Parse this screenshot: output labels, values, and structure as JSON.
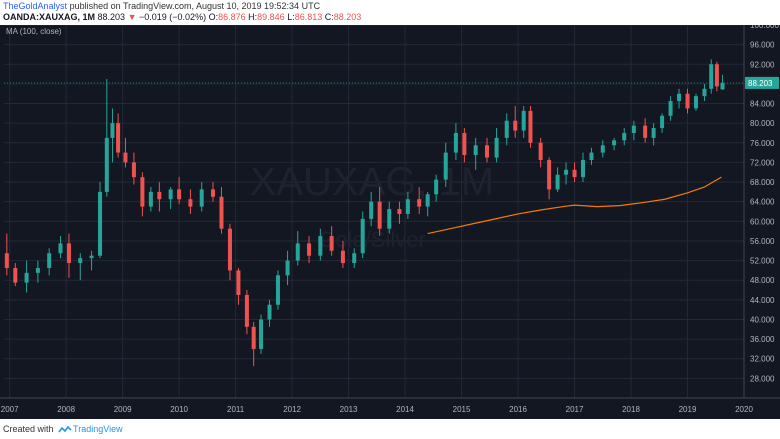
{
  "header": {
    "author": "TheGoldAnalyst",
    "published": "published on TradingView.com, August 10, 2019 19:52:34 UTC",
    "symbol": "OANDA:XAUXAG, 1M",
    "last": "88.203",
    "change_arrow": "▼",
    "change": "−0.019 (−0.02%)",
    "o_label": "O:",
    "o_value": "86.876",
    "h_label": "H:",
    "h_value": "89.846",
    "l_label": "L:",
    "l_value": "86.813",
    "c_label": "C:",
    "c_value": "88.203"
  },
  "legend": {
    "ma_label": "MA (100, close)"
  },
  "watermark": {
    "symbol": "XAUXAG, 1M",
    "description": "Gold/Silver"
  },
  "footer": {
    "created_with": "Created with",
    "brand": "TradingView"
  },
  "colors": {
    "background": "#131722",
    "up": "#26a69a",
    "down": "#ef5350",
    "ma": "#f57c00",
    "price_tag": "#26a69a",
    "grid": "#232838",
    "axis_text": "#b2b5be"
  },
  "chart_data": {
    "type": "candlestick",
    "instrument": "OANDA:XAUXAG",
    "interval": "1M",
    "ylim": [
      24,
      100
    ],
    "y_ticks": [
      "28.000",
      "32.000",
      "36.000",
      "40.000",
      "44.000",
      "48.000",
      "52.000",
      "56.000",
      "60.000",
      "64.000",
      "68.000",
      "72.000",
      "76.000",
      "80.000",
      "84.000",
      "88.000",
      "92.000",
      "96.000",
      "100.000"
    ],
    "x_ticks": [
      "2007",
      "2008",
      "2009",
      "2010",
      "2011",
      "2012",
      "2013",
      "2014",
      "2015",
      "2016",
      "2017",
      "2018",
      "2019",
      "2020"
    ],
    "x_range": [
      2006.9,
      2020.0
    ],
    "grid": true,
    "last_price": "88.203",
    "candles": [
      {
        "x": 2006.95,
        "o": 53.5,
        "h": 57.5,
        "l": 49.0,
        "c": 50.5
      },
      {
        "x": 2007.1,
        "o": 50.5,
        "h": 51.5,
        "l": 46.8,
        "c": 47.5
      },
      {
        "x": 2007.3,
        "o": 47.5,
        "h": 52.0,
        "l": 45.5,
        "c": 49.5
      },
      {
        "x": 2007.5,
        "o": 49.5,
        "h": 52.0,
        "l": 47.5,
        "c": 50.5
      },
      {
        "x": 2007.7,
        "o": 50.5,
        "h": 54.5,
        "l": 49.0,
        "c": 53.5
      },
      {
        "x": 2007.9,
        "o": 53.5,
        "h": 57.0,
        "l": 52.5,
        "c": 55.5
      },
      {
        "x": 2008.05,
        "o": 55.5,
        "h": 57.5,
        "l": 48.5,
        "c": 51.5
      },
      {
        "x": 2008.25,
        "o": 51.5,
        "h": 53.5,
        "l": 48.0,
        "c": 52.5
      },
      {
        "x": 2008.45,
        "o": 52.5,
        "h": 54.0,
        "l": 50.0,
        "c": 53.0
      },
      {
        "x": 2008.6,
        "o": 53.0,
        "h": 68.0,
        "l": 52.5,
        "c": 66.0
      },
      {
        "x": 2008.72,
        "o": 66.0,
        "h": 89.0,
        "l": 65.0,
        "c": 77.0
      },
      {
        "x": 2008.82,
        "o": 77.0,
        "h": 83.0,
        "l": 72.0,
        "c": 80.0
      },
      {
        "x": 2008.92,
        "o": 80.0,
        "h": 82.0,
        "l": 73.0,
        "c": 74.0
      },
      {
        "x": 2009.05,
        "o": 74.0,
        "h": 77.0,
        "l": 71.0,
        "c": 72.0
      },
      {
        "x": 2009.2,
        "o": 72.0,
        "h": 74.0,
        "l": 67.5,
        "c": 69.0
      },
      {
        "x": 2009.35,
        "o": 69.0,
        "h": 70.0,
        "l": 61.0,
        "c": 63.0
      },
      {
        "x": 2009.5,
        "o": 63.0,
        "h": 67.0,
        "l": 62.0,
        "c": 66.0
      },
      {
        "x": 2009.65,
        "o": 66.0,
        "h": 68.0,
        "l": 62.0,
        "c": 64.5
      },
      {
        "x": 2009.85,
        "o": 64.5,
        "h": 67.0,
        "l": 62.5,
        "c": 66.5
      },
      {
        "x": 2010.0,
        "o": 66.5,
        "h": 69.0,
        "l": 63.5,
        "c": 64.5
      },
      {
        "x": 2010.2,
        "o": 64.5,
        "h": 66.5,
        "l": 61.5,
        "c": 63.0
      },
      {
        "x": 2010.4,
        "o": 63.0,
        "h": 68.0,
        "l": 62.0,
        "c": 66.5
      },
      {
        "x": 2010.6,
        "o": 66.5,
        "h": 68.0,
        "l": 64.0,
        "c": 65.0
      },
      {
        "x": 2010.75,
        "o": 65.0,
        "h": 67.0,
        "l": 57.5,
        "c": 58.5
      },
      {
        "x": 2010.9,
        "o": 58.5,
        "h": 59.5,
        "l": 48.0,
        "c": 50.0
      },
      {
        "x": 2011.05,
        "o": 50.0,
        "h": 50.5,
        "l": 43.0,
        "c": 45.0
      },
      {
        "x": 2011.2,
        "o": 45.0,
        "h": 46.0,
        "l": 37.0,
        "c": 38.5
      },
      {
        "x": 2011.32,
        "o": 38.5,
        "h": 39.5,
        "l": 30.5,
        "c": 34.0
      },
      {
        "x": 2011.45,
        "o": 34.0,
        "h": 41.0,
        "l": 33.0,
        "c": 40.0
      },
      {
        "x": 2011.6,
        "o": 40.0,
        "h": 44.0,
        "l": 38.5,
        "c": 43.0
      },
      {
        "x": 2011.75,
        "o": 43.0,
        "h": 50.0,
        "l": 42.0,
        "c": 49.0
      },
      {
        "x": 2011.92,
        "o": 49.0,
        "h": 54.0,
        "l": 47.0,
        "c": 52.0
      },
      {
        "x": 2012.1,
        "o": 52.0,
        "h": 58.0,
        "l": 51.0,
        "c": 55.5
      },
      {
        "x": 2012.3,
        "o": 55.5,
        "h": 57.0,
        "l": 51.5,
        "c": 53.0
      },
      {
        "x": 2012.5,
        "o": 53.0,
        "h": 58.5,
        "l": 52.0,
        "c": 57.0
      },
      {
        "x": 2012.7,
        "o": 57.0,
        "h": 59.0,
        "l": 53.0,
        "c": 54.0
      },
      {
        "x": 2012.9,
        "o": 54.0,
        "h": 56.0,
        "l": 50.5,
        "c": 51.5
      },
      {
        "x": 2013.1,
        "o": 51.5,
        "h": 54.5,
        "l": 50.5,
        "c": 53.5
      },
      {
        "x": 2013.25,
        "o": 53.5,
        "h": 62.0,
        "l": 52.5,
        "c": 60.5
      },
      {
        "x": 2013.4,
        "o": 60.5,
        "h": 66.0,
        "l": 59.0,
        "c": 64.0
      },
      {
        "x": 2013.55,
        "o": 64.0,
        "h": 67.0,
        "l": 57.0,
        "c": 58.5
      },
      {
        "x": 2013.72,
        "o": 58.5,
        "h": 64.0,
        "l": 57.5,
        "c": 62.5
      },
      {
        "x": 2013.9,
        "o": 62.5,
        "h": 64.0,
        "l": 59.5,
        "c": 61.5
      },
      {
        "x": 2014.05,
        "o": 61.5,
        "h": 66.0,
        "l": 60.5,
        "c": 64.5
      },
      {
        "x": 2014.25,
        "o": 64.5,
        "h": 67.0,
        "l": 61.5,
        "c": 63.0
      },
      {
        "x": 2014.4,
        "o": 63.0,
        "h": 66.0,
        "l": 61.0,
        "c": 65.5
      },
      {
        "x": 2014.55,
        "o": 65.5,
        "h": 69.5,
        "l": 64.0,
        "c": 68.5
      },
      {
        "x": 2014.72,
        "o": 68.5,
        "h": 76.0,
        "l": 67.0,
        "c": 74.0
      },
      {
        "x": 2014.9,
        "o": 74.0,
        "h": 80.0,
        "l": 72.5,
        "c": 78.0
      },
      {
        "x": 2015.05,
        "o": 78.0,
        "h": 79.0,
        "l": 72.0,
        "c": 73.5
      },
      {
        "x": 2015.25,
        "o": 73.5,
        "h": 77.0,
        "l": 70.5,
        "c": 75.5
      },
      {
        "x": 2015.45,
        "o": 75.5,
        "h": 77.0,
        "l": 72.0,
        "c": 73.0
      },
      {
        "x": 2015.62,
        "o": 73.0,
        "h": 79.0,
        "l": 72.0,
        "c": 77.0
      },
      {
        "x": 2015.8,
        "o": 77.0,
        "h": 82.0,
        "l": 75.5,
        "c": 80.5
      },
      {
        "x": 2015.95,
        "o": 80.5,
        "h": 83.5,
        "l": 77.0,
        "c": 78.5
      },
      {
        "x": 2016.1,
        "o": 78.5,
        "h": 83.5,
        "l": 77.0,
        "c": 82.5
      },
      {
        "x": 2016.22,
        "o": 82.5,
        "h": 83.5,
        "l": 75.0,
        "c": 76.0
      },
      {
        "x": 2016.4,
        "o": 76.0,
        "h": 77.0,
        "l": 71.0,
        "c": 72.5
      },
      {
        "x": 2016.55,
        "o": 72.5,
        "h": 73.0,
        "l": 64.5,
        "c": 66.5
      },
      {
        "x": 2016.7,
        "o": 66.5,
        "h": 71.0,
        "l": 66.0,
        "c": 69.5
      },
      {
        "x": 2016.85,
        "o": 69.5,
        "h": 72.0,
        "l": 67.5,
        "c": 70.5
      },
      {
        "x": 2017.0,
        "o": 70.5,
        "h": 72.0,
        "l": 68.0,
        "c": 69.0
      },
      {
        "x": 2017.15,
        "o": 69.0,
        "h": 74.0,
        "l": 68.0,
        "c": 72.5
      },
      {
        "x": 2017.3,
        "o": 72.5,
        "h": 75.0,
        "l": 71.5,
        "c": 74.0
      },
      {
        "x": 2017.5,
        "o": 74.0,
        "h": 76.5,
        "l": 73.0,
        "c": 75.5
      },
      {
        "x": 2017.7,
        "o": 75.5,
        "h": 77.0,
        "l": 74.5,
        "c": 76.5
      },
      {
        "x": 2017.88,
        "o": 76.5,
        "h": 79.0,
        "l": 75.5,
        "c": 78.0
      },
      {
        "x": 2018.05,
        "o": 78.0,
        "h": 80.5,
        "l": 76.5,
        "c": 79.5
      },
      {
        "x": 2018.25,
        "o": 79.5,
        "h": 81.0,
        "l": 76.0,
        "c": 77.0
      },
      {
        "x": 2018.4,
        "o": 77.0,
        "h": 80.0,
        "l": 75.5,
        "c": 79.0
      },
      {
        "x": 2018.55,
        "o": 79.0,
        "h": 82.0,
        "l": 78.0,
        "c": 81.5
      },
      {
        "x": 2018.7,
        "o": 81.5,
        "h": 85.5,
        "l": 80.5,
        "c": 84.5
      },
      {
        "x": 2018.85,
        "o": 84.5,
        "h": 87.0,
        "l": 83.0,
        "c": 86.0
      },
      {
        "x": 2019.0,
        "o": 86.0,
        "h": 87.0,
        "l": 82.0,
        "c": 83.0
      },
      {
        "x": 2019.15,
        "o": 83.0,
        "h": 86.0,
        "l": 82.5,
        "c": 85.5
      },
      {
        "x": 2019.3,
        "o": 85.5,
        "h": 88.0,
        "l": 84.5,
        "c": 87.0
      },
      {
        "x": 2019.42,
        "o": 87.0,
        "h": 93.0,
        "l": 86.0,
        "c": 92.0
      },
      {
        "x": 2019.52,
        "o": 92.0,
        "h": 92.5,
        "l": 86.5,
        "c": 87.5
      },
      {
        "x": 2019.62,
        "o": 86.876,
        "h": 89.846,
        "l": 86.813,
        "c": 88.203
      }
    ],
    "ma": {
      "name": "MA (100, close)",
      "points": [
        [
          2014.4,
          57.5
        ],
        [
          2014.8,
          58.5
        ],
        [
          2015.2,
          59.5
        ],
        [
          2015.6,
          60.5
        ],
        [
          2016.0,
          61.5
        ],
        [
          2016.4,
          62.3
        ],
        [
          2016.8,
          63.0
        ],
        [
          2017.0,
          63.3
        ],
        [
          2017.4,
          63.0
        ],
        [
          2017.8,
          63.2
        ],
        [
          2018.2,
          63.8
        ],
        [
          2018.6,
          64.5
        ],
        [
          2019.0,
          65.8
        ],
        [
          2019.3,
          67.0
        ],
        [
          2019.6,
          69.0
        ]
      ]
    }
  }
}
